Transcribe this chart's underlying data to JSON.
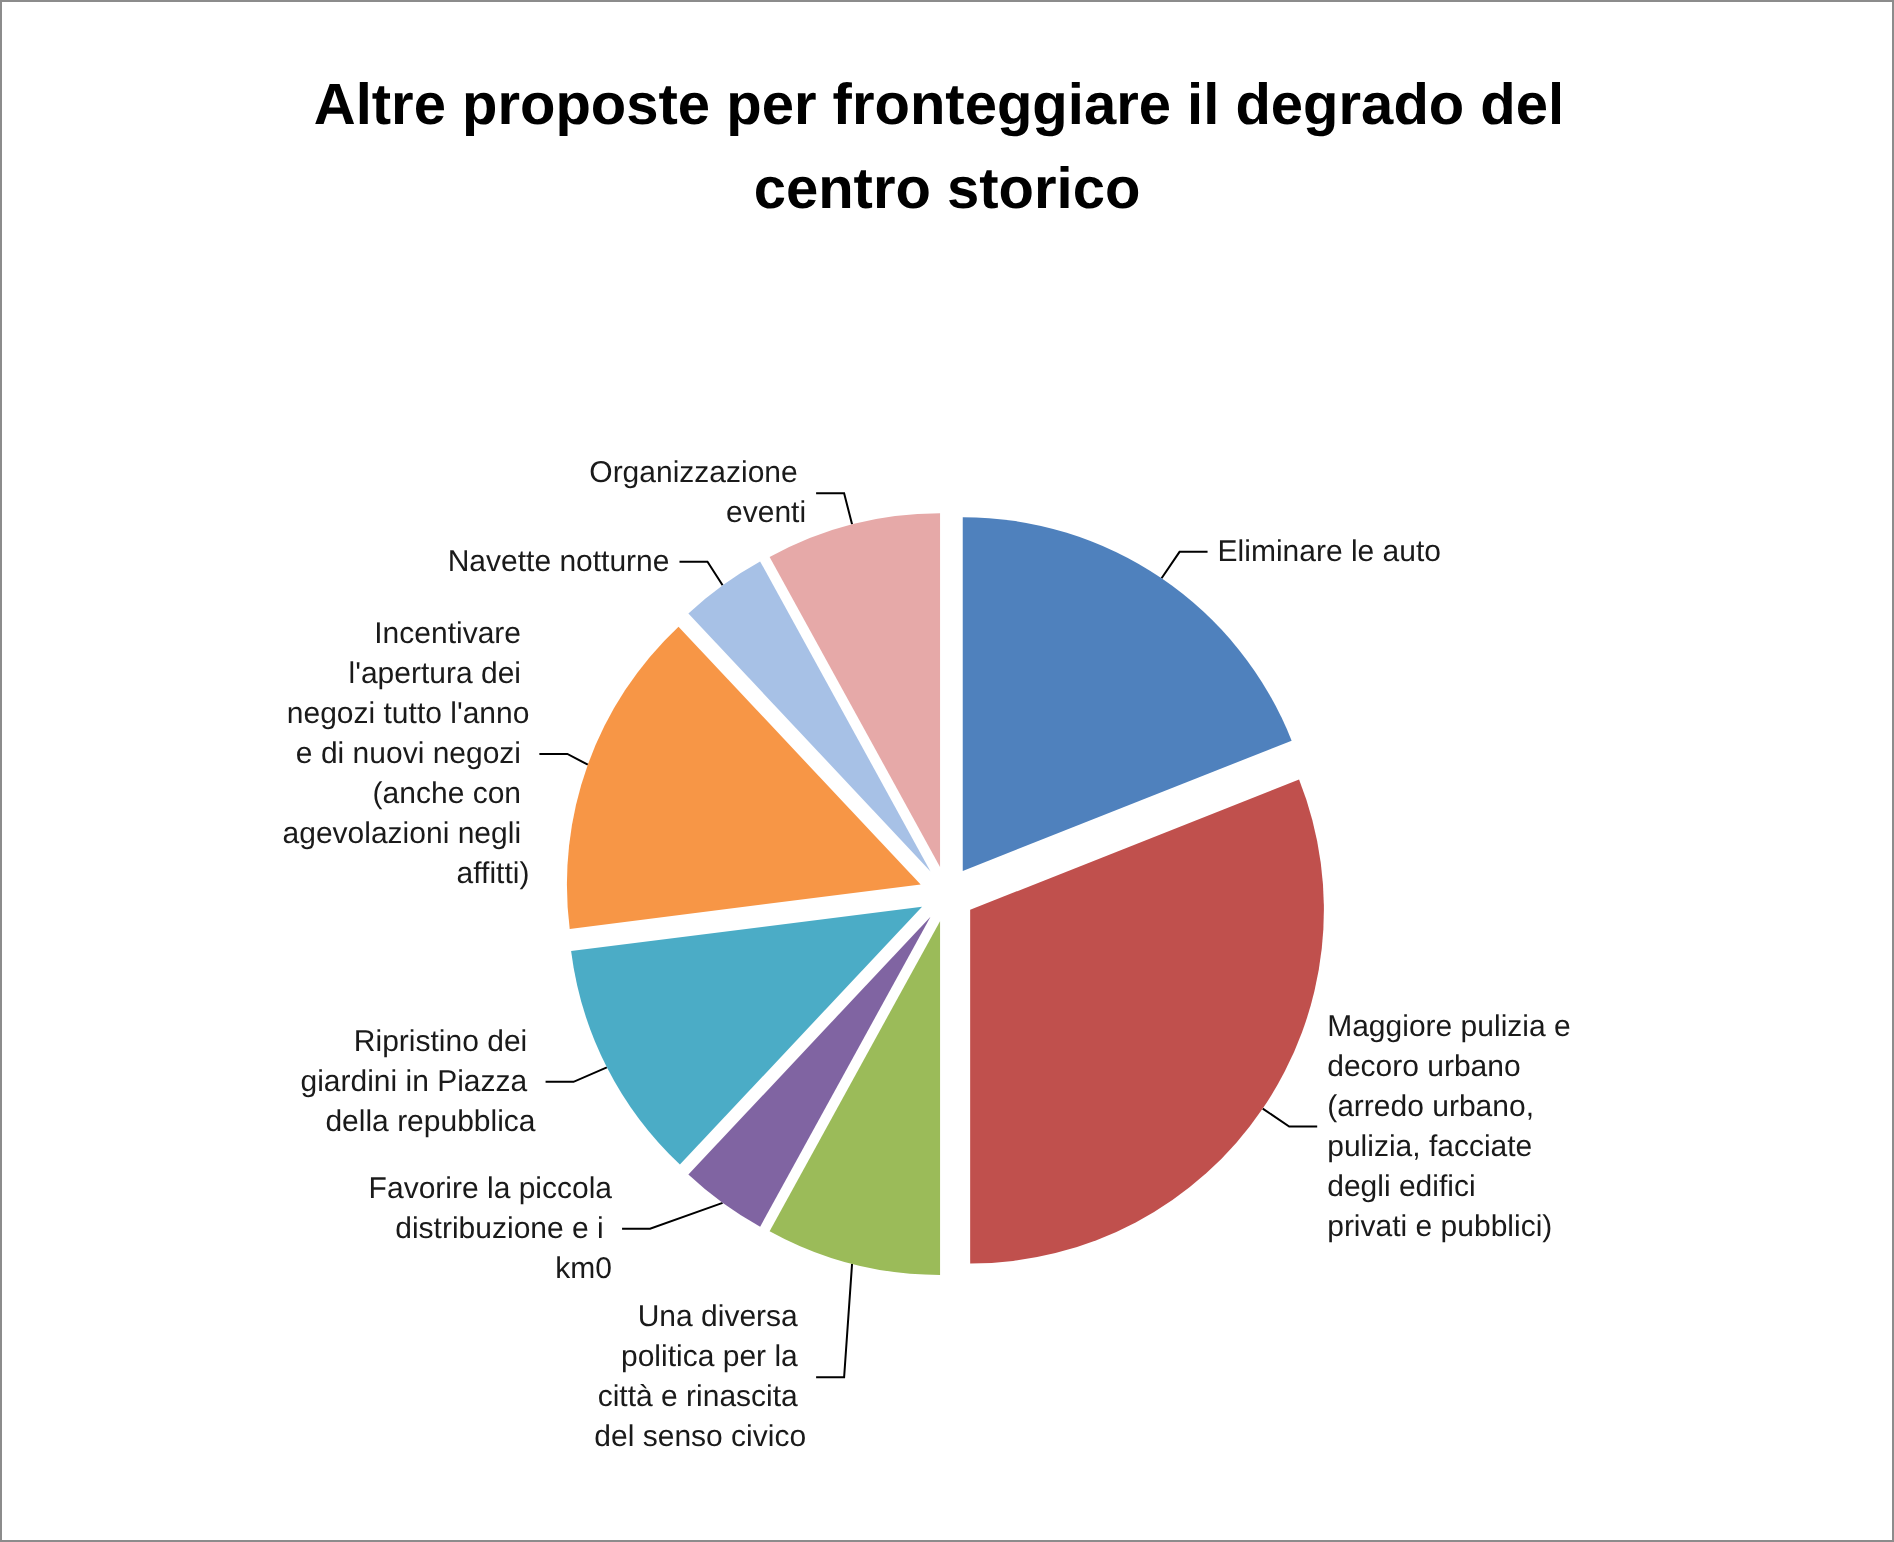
{
  "chart_data": {
    "type": "pie",
    "title": "Altre proposte per fronteggiare il degrado del centro storico",
    "categories": [
      "Eliminare le auto",
      "Maggiore pulizia e decoro urbano (arredo urbano, pulizia, facciate degli edifici privati e pubblici)",
      "Una diversa politica per la città e rinascita del senso civico",
      "Favorire la piccola distribuzione e i km0",
      "Ripristino dei giardini in Piazza della repubblica",
      "Incentivare l'apertura dei negozi tutto l'anno e di nuovi negozi (anche con agevolazioni negli affitti)",
      "Navette notturne",
      "Organizzazione eventi"
    ],
    "values": [
      19,
      31,
      8,
      4,
      11,
      15,
      4,
      8
    ],
    "colors": [
      "#4f81bd",
      "#c0504d",
      "#9bbb59",
      "#8064a2",
      "#4bacc6",
      "#f79646",
      "#a7c1e6",
      "#e6a9a8"
    ]
  }
}
